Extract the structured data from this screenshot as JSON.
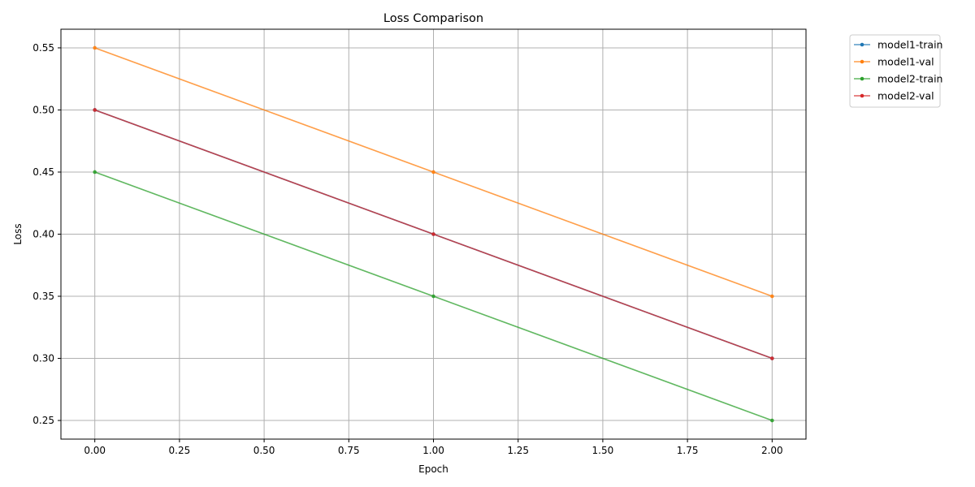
{
  "chart_data": {
    "type": "line",
    "title": "Loss Comparison",
    "xlabel": "Epoch",
    "ylabel": "Loss",
    "x": [
      0,
      1,
      2
    ],
    "xlim": [
      -0.1,
      2.1
    ],
    "ylim": [
      0.235,
      0.565
    ],
    "xticks": [
      "0.00",
      "0.25",
      "0.50",
      "0.75",
      "1.00",
      "1.25",
      "1.50",
      "1.75",
      "2.00"
    ],
    "yticks": [
      "0.25",
      "0.30",
      "0.35",
      "0.40",
      "0.45",
      "0.50",
      "0.55"
    ],
    "grid": true,
    "legend_position": "outside-top-right",
    "series": [
      {
        "name": "model1-train",
        "color": "#1f77b4",
        "values": [
          0.5,
          0.4,
          0.3
        ]
      },
      {
        "name": "model1-val",
        "color": "#ff7f0e",
        "values": [
          0.55,
          0.45,
          0.35
        ]
      },
      {
        "name": "model2-train",
        "color": "#2ca02c",
        "values": [
          0.45,
          0.35,
          0.25
        ]
      },
      {
        "name": "model2-val",
        "color": "#d62728",
        "values": [
          0.5,
          0.4,
          0.3
        ]
      }
    ]
  }
}
